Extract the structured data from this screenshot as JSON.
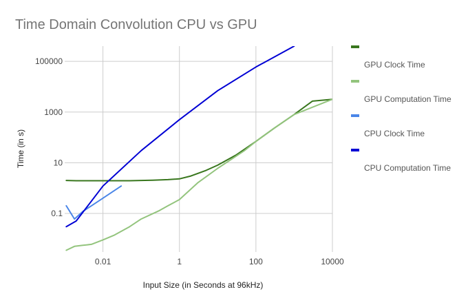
{
  "chart_data": {
    "type": "line",
    "title": "Time Domain Convolution CPU vs GPU",
    "xlabel": "Input Size (in Seconds at 96kHz)",
    "ylabel": "Time (in s)",
    "x_scale": "log",
    "y_scale": "log",
    "xlim": [
      0.001,
      10000
    ],
    "ylim": [
      0.003,
      400000
    ],
    "x_ticks": [
      0.01,
      1,
      100,
      10000
    ],
    "x_tick_labels": [
      "0.01",
      "1",
      "100",
      "10000"
    ],
    "y_ticks": [
      0.1,
      10,
      1000,
      100000
    ],
    "y_tick_labels": [
      "0.1",
      "10",
      "1000",
      "100000"
    ],
    "grid": true,
    "legend_position": "right",
    "series": [
      {
        "name": "GPU Clock Time",
        "color": "#38761d",
        "points": [
          [
            0.0011,
            2
          ],
          [
            0.002,
            1.95
          ],
          [
            0.005,
            1.95
          ],
          [
            0.01,
            1.95
          ],
          [
            0.05,
            1.95
          ],
          [
            0.2,
            2.05
          ],
          [
            0.5,
            2.15
          ],
          [
            1,
            2.3
          ],
          [
            2,
            3
          ],
          [
            5,
            5
          ],
          [
            10,
            8
          ],
          [
            30,
            20
          ],
          [
            100,
            70
          ],
          [
            300,
            230
          ],
          [
            1000,
            800
          ],
          [
            3000,
            2700
          ],
          [
            10000,
            3200
          ]
        ]
      },
      {
        "name": "GPU Computation Time",
        "color": "#93c47d",
        "points": [
          [
            0.0011,
            0.0035
          ],
          [
            0.0018,
            0.005
          ],
          [
            0.003,
            0.0055
          ],
          [
            0.005,
            0.006
          ],
          [
            0.01,
            0.009
          ],
          [
            0.02,
            0.014
          ],
          [
            0.05,
            0.03
          ],
          [
            0.1,
            0.06
          ],
          [
            0.3,
            0.13
          ],
          [
            0.5,
            0.2
          ],
          [
            1,
            0.35
          ],
          [
            3,
            1.6
          ],
          [
            10,
            6
          ],
          [
            50,
            30
          ],
          [
            100,
            70
          ],
          [
            300,
            230
          ],
          [
            1000,
            800
          ],
          [
            10000,
            3200
          ]
        ]
      },
      {
        "name": "CPU Clock Time",
        "color": "#4a86e8",
        "points": [
          [
            0.0011,
            0.2
          ],
          [
            0.0018,
            0.06
          ],
          [
            0.003,
            0.12
          ],
          [
            0.005,
            0.2
          ],
          [
            0.01,
            0.4
          ],
          [
            0.02,
            0.8
          ],
          [
            0.03,
            1.2
          ]
        ]
      },
      {
        "name": "CPU Computation Time",
        "color": "#0000d4",
        "points": [
          [
            0.0011,
            0.03
          ],
          [
            0.002,
            0.05
          ],
          [
            0.01,
            1.2
          ],
          [
            0.1,
            30
          ],
          [
            1,
            500
          ],
          [
            10,
            7000
          ],
          [
            100,
            60000
          ],
          [
            1000,
            400000
          ]
        ]
      }
    ]
  }
}
